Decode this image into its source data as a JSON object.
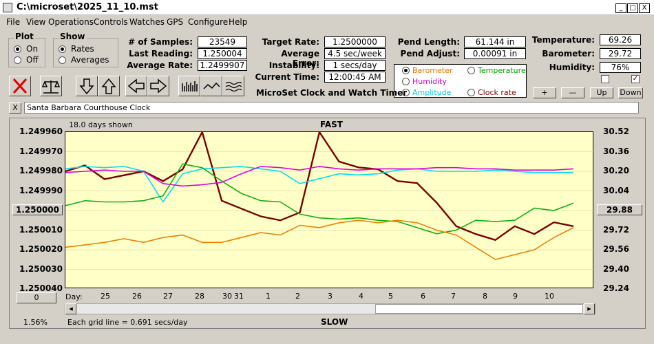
{
  "window": {
    "title": "C:\\microset\\2025_11_10.mst",
    "btn_min": "_",
    "btn_max": "□",
    "btn_close": "X"
  },
  "menu": [
    "File",
    "View",
    "Operations",
    "Controls",
    "Watches",
    "GPS",
    "Configure",
    "Help"
  ],
  "plot_group": {
    "title": "Plot",
    "options": [
      "On",
      "Off"
    ],
    "selected": "On"
  },
  "show_group": {
    "title": "Show",
    "options": [
      "Rates",
      "Averages"
    ],
    "selected": "Rates"
  },
  "stats": {
    "samples_label": "# of Samples:",
    "samples": "23549",
    "last_reading_label": "Last Reading:",
    "last_reading": "1.250004",
    "avg_rate_label": "Average Rate:",
    "avg_rate": "1.2499907",
    "target_rate_label": "Target Rate:",
    "target_rate": "1.2500000",
    "avg_error_label": "Average Error:",
    "avg_error": "4.5 sec/week",
    "instability_label": "Instability:",
    "instability": "1 secs/day",
    "current_time_label": "Current Time:",
    "current_time": "12:00:45 AM",
    "pend_length_label": "Pend Length:",
    "pend_length": "61.144 in",
    "pend_adjust_label": "Pend Adjust:",
    "pend_adjust": "0.00091 in",
    "temperature_label": "Temperature:",
    "temperature": "69.26",
    "barometer_label": "Barometer:",
    "barometer": "29.72",
    "humidity_label": "Humidity:",
    "humidity": "76%"
  },
  "app_caption": "MicroSet Clock and Watch Timer",
  "sensor_options": [
    {
      "label": "Barometer",
      "color": "#e07800"
    },
    {
      "label": "Temperature",
      "color": "#00a000"
    },
    {
      "label": "Humidity",
      "color": "#d000d0"
    },
    {
      "label": "Clock rate",
      "color": "#8b0000"
    },
    {
      "label": "Amplitude",
      "color": "#00c8e0"
    }
  ],
  "sensor_selected": "Barometer",
  "adjust_buttons": {
    "plus": "+",
    "minus": "—",
    "up": "Up",
    "down": "Down"
  },
  "checkboxes": {
    "right_checked": "✓"
  },
  "clock_name": "Santa Barbara Courthouse Clock",
  "clear_button": "X",
  "plot": {
    "days_shown": "18.0 days shown",
    "fast_label": "FAST",
    "slow_label": "SLOW",
    "grid_note": "Each grid line = 0.691 secs/day",
    "percent": "1.56%",
    "center_value": "1.250000",
    "zero_btn": "0",
    "right_value": "29.88",
    "day_label": "Day:"
  },
  "chart_data": {
    "type": "line",
    "left_axis_ticks": [
      "1.249960",
      "1.249970",
      "1.249980",
      "1.249990",
      "1.250000",
      "1.250010",
      "1.250020",
      "1.250030",
      "1.250040"
    ],
    "right_axis_ticks": [
      "30.52",
      "30.36",
      "30.20",
      "30.04",
      "29.88",
      "29.72",
      "29.56",
      "29.40",
      "29.24"
    ],
    "x_day_labels": [
      "25",
      "26",
      "27",
      "28",
      "30",
      "31",
      "1",
      "2",
      "3",
      "4",
      "5",
      "6",
      "7",
      "8",
      "9",
      "10"
    ],
    "series": [
      {
        "name": "Clock rate",
        "color": "#7a0000",
        "values": [
          1.24998,
          1.249977,
          1.249984,
          1.249982,
          1.24998,
          1.249985,
          1.249979,
          1.24996,
          1.249995,
          1.249999,
          1.250003,
          1.250005,
          1.250001,
          1.24996,
          1.249975,
          1.249978,
          1.249979,
          1.249985,
          1.249986,
          1.249996,
          1.250008,
          1.250012,
          1.250015,
          1.250008,
          1.250012,
          1.250006,
          1.250008
        ]
      },
      {
        "name": "Amplitude",
        "color": "#00e0f0",
        "values": [
          30.22,
          30.24,
          30.23,
          30.24,
          30.2,
          29.95,
          30.18,
          30.22,
          30.23,
          30.24,
          30.22,
          30.2,
          30.1,
          30.14,
          30.18,
          30.17,
          30.18,
          30.21,
          30.22,
          30.2,
          30.2,
          30.2,
          30.21,
          30.2,
          30.19,
          30.19,
          30.19
        ]
      },
      {
        "name": "Humidity",
        "color": "#e000e0",
        "values": [
          30.19,
          30.2,
          30.21,
          30.2,
          30.2,
          30.1,
          30.08,
          30.09,
          30.11,
          30.18,
          30.24,
          30.23,
          30.21,
          30.24,
          30.22,
          30.21,
          30.22,
          30.22,
          30.22,
          30.23,
          30.23,
          30.22,
          30.22,
          30.21,
          30.21,
          30.21,
          30.22
        ]
      },
      {
        "name": "Temperature",
        "color": "#10b010",
        "values": [
          29.92,
          29.96,
          29.95,
          29.95,
          29.96,
          30.0,
          30.26,
          30.23,
          30.12,
          30.02,
          29.96,
          29.95,
          29.85,
          29.82,
          29.81,
          29.82,
          29.8,
          29.79,
          29.74,
          29.69,
          29.72,
          29.8,
          29.79,
          29.8,
          29.9,
          29.88,
          29.94
        ]
      },
      {
        "name": "Barometer",
        "color": "#f08000",
        "values": [
          29.58,
          29.6,
          29.62,
          29.65,
          29.62,
          29.66,
          29.68,
          29.62,
          29.62,
          29.66,
          29.7,
          29.68,
          29.76,
          29.74,
          29.78,
          29.8,
          29.78,
          29.8,
          29.78,
          29.72,
          29.68,
          29.58,
          29.48,
          29.52,
          29.56,
          29.66,
          29.74
        ]
      }
    ]
  }
}
